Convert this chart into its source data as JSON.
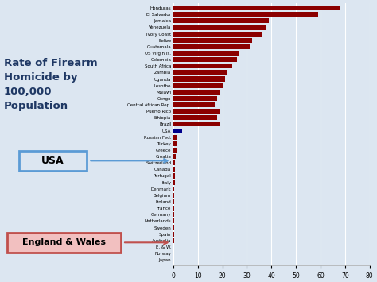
{
  "title": "Rate of Firearm\nHomicide by\n100,000\nPopulation",
  "countries": [
    "Honduras",
    "El Salvador",
    "Jamaica",
    "Venezuela",
    "Ivory Coast",
    "Belize",
    "Guatemala",
    "US Virgin Is.",
    "Colombia",
    "South Africa",
    "Zambia",
    "Uganda",
    "Lesotho",
    "Malawi",
    "Congo",
    "Central African Rep.",
    "Puerto Rico",
    "Ethiopia",
    "Brazil",
    "USA",
    "Russian Fed.",
    "Turkey",
    "Greece",
    "Croatia",
    "Switzerland",
    "Canada",
    "Portugal",
    "Italy",
    "Denmark",
    "Belgium",
    "Finland",
    "France",
    "Germany",
    "Netherlands",
    "Sweden",
    "Spain",
    "Australia",
    "E. & W.",
    "Norway",
    "Japan"
  ],
  "values": [
    68,
    59,
    39,
    38,
    36,
    32,
    31,
    27,
    26,
    24,
    22,
    21,
    20,
    19,
    18,
    17,
    19,
    18,
    19,
    3.7,
    1.5,
    1.2,
    1.2,
    1.1,
    0.77,
    0.76,
    0.74,
    0.71,
    0.27,
    0.33,
    0.45,
    0.22,
    0.2,
    0.2,
    0.19,
    0.18,
    0.16,
    0.07,
    0.1,
    0.06
  ],
  "usa_color": "#00008b",
  "default_color": "#8b0000",
  "background_color": "#dce6f1",
  "xlim": [
    0,
    80
  ],
  "xticks": [
    0,
    10,
    20,
    30,
    40,
    50,
    60,
    70,
    80
  ],
  "title_color": "#1f3864",
  "usa_box_face": "#dce6f1",
  "usa_box_edge": "#5b9bd5",
  "ew_box_face": "#f2c0c0",
  "ew_box_edge": "#c0504d",
  "arrow_usa_color": "#5b9bd5",
  "arrow_ew_color": "#c0504d"
}
